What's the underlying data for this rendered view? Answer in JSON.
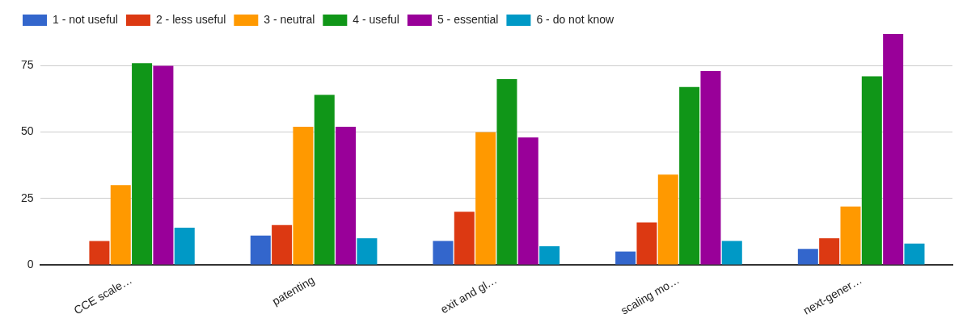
{
  "chart_data": {
    "type": "bar",
    "categories": [
      "CCE scale…",
      "patenting",
      "exit and gl…",
      "scaling mo…",
      "next-gener…"
    ],
    "series": [
      {
        "name": "1 - not useful",
        "color": "#3366cc",
        "values": [
          0,
          11,
          9,
          5,
          6
        ]
      },
      {
        "name": "2 - less useful",
        "color": "#dc3912",
        "values": [
          9,
          15,
          20,
          16,
          10
        ]
      },
      {
        "name": "3 - neutral",
        "color": "#ff9900",
        "values": [
          30,
          52,
          50,
          34,
          22
        ]
      },
      {
        "name": "4 - useful",
        "color": "#109618",
        "values": [
          76,
          64,
          70,
          67,
          71
        ]
      },
      {
        "name": "5 - essential",
        "color": "#990099",
        "values": [
          75,
          52,
          48,
          73,
          87
        ]
      },
      {
        "name": "6 - do not know",
        "color": "#0099c6",
        "values": [
          14,
          10,
          7,
          9,
          8
        ]
      }
    ],
    "ylim": [
      0,
      87
    ],
    "yticks": [
      0,
      25,
      50,
      75
    ],
    "grid": "y",
    "legend": "top left"
  }
}
